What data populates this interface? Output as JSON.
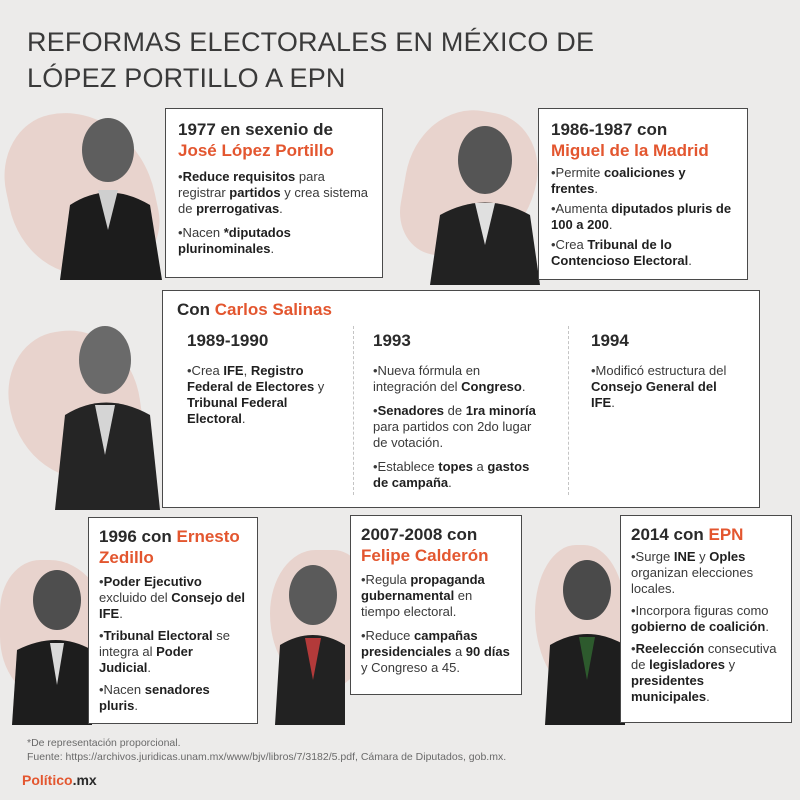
{
  "title": {
    "line1": "REFORMAS ELECTORALES EN MÉXICO DE",
    "line2": "LÓPEZ PORTILLO A EPN"
  },
  "cards": {
    "lopez": {
      "heading_pre": "1977 en sexenio de",
      "heading_name": "José López Portillo",
      "b1": [
        {
          "t": "•"
        },
        {
          "t": "Reduce requisitos",
          "b": true
        },
        {
          "t": " para registrar "
        },
        {
          "t": "partidos",
          "b": true
        },
        {
          "t": " y crea sistema de "
        },
        {
          "t": "prerrogativas",
          "b": true
        },
        {
          "t": "."
        }
      ],
      "b2": [
        {
          "t": "•Nacen "
        },
        {
          "t": "*diputados plurinominales",
          "b": true
        },
        {
          "t": "."
        }
      ]
    },
    "madrid": {
      "heading_pre": "1986-1987 con",
      "heading_name": "Miguel de la Madrid",
      "b1": [
        {
          "t": "•Permite "
        },
        {
          "t": "coaliciones y frentes",
          "b": true
        },
        {
          "t": "."
        }
      ],
      "b2": [
        {
          "t": "•Aumenta "
        },
        {
          "t": "diputados pluris de 100 a 200",
          "b": true
        },
        {
          "t": "."
        }
      ],
      "b3": [
        {
          "t": "•Crea "
        },
        {
          "t": "Tribunal de lo Contencioso Electoral",
          "b": true
        },
        {
          "t": "."
        }
      ]
    },
    "salinas": {
      "heading_pre": "Con",
      "heading_name": "Carlos Salinas",
      "col1": {
        "year": "1989-1990",
        "b1": [
          {
            "t": "•Crea "
          },
          {
            "t": "IFE",
            "b": true
          },
          {
            "t": ", "
          },
          {
            "t": "Registro Federal de Electores",
            "b": true
          },
          {
            "t": " y "
          },
          {
            "t": "Tribunal Federal Electoral",
            "b": true
          },
          {
            "t": "."
          }
        ]
      },
      "col2": {
        "year": "1993",
        "b1": [
          {
            "t": "•Nueva fórmula en integración del "
          },
          {
            "t": "Congreso",
            "b": true
          },
          {
            "t": "."
          }
        ],
        "b2": [
          {
            "t": "•"
          },
          {
            "t": "Senadores",
            "b": true
          },
          {
            "t": " de "
          },
          {
            "t": "1ra minoría",
            "b": true
          },
          {
            "t": " para partidos con 2do lugar de votación."
          }
        ],
        "b3": [
          {
            "t": "•Establece "
          },
          {
            "t": "topes",
            "b": true
          },
          {
            "t": " a "
          },
          {
            "t": "gastos de campaña",
            "b": true
          },
          {
            "t": "."
          }
        ]
      },
      "col3": {
        "year": "1994",
        "b1": [
          {
            "t": "•Modificó estructura del "
          },
          {
            "t": "Consejo General del IFE",
            "b": true
          },
          {
            "t": "."
          }
        ]
      }
    },
    "zedillo": {
      "heading_pre": "1996 con",
      "heading_name": "Ernesto Zedillo",
      "b1": [
        {
          "t": "•"
        },
        {
          "t": "Poder Ejecutivo",
          "b": true
        },
        {
          "t": " excluido del "
        },
        {
          "t": "Consejo del IFE",
          "b": true
        },
        {
          "t": "."
        }
      ],
      "b2": [
        {
          "t": "•"
        },
        {
          "t": "Tribunal Electoral",
          "b": true
        },
        {
          "t": " se integra al "
        },
        {
          "t": "Poder Judicial",
          "b": true
        },
        {
          "t": "."
        }
      ],
      "b3": [
        {
          "t": "•Nacen "
        },
        {
          "t": "senadores pluris",
          "b": true
        },
        {
          "t": "."
        }
      ]
    },
    "calderon": {
      "heading_pre": "2007-2008 con",
      "heading_name": "Felipe Calderón",
      "b1": [
        {
          "t": "•Regula "
        },
        {
          "t": "propaganda gubernamental",
          "b": true
        },
        {
          "t": " en tiempo electoral."
        }
      ],
      "b2": [
        {
          "t": "•Reduce "
        },
        {
          "t": "campañas presidenciales",
          "b": true
        },
        {
          "t": " a "
        },
        {
          "t": "90 días",
          "b": true
        },
        {
          "t": " y Congreso a 45."
        }
      ]
    },
    "epn": {
      "heading_pre": "2014 con",
      "heading_name": "EPN",
      "b1": [
        {
          "t": "•Surge "
        },
        {
          "t": "INE",
          "b": true
        },
        {
          "t": " y "
        },
        {
          "t": "Oples",
          "b": true
        },
        {
          "t": " organizan elecciones locales."
        }
      ],
      "b2": [
        {
          "t": "•Incorpora figuras como "
        },
        {
          "t": "gobierno de coalición",
          "b": true
        },
        {
          "t": "."
        }
      ],
      "b3": [
        {
          "t": "•"
        },
        {
          "t": "Reelección",
          "b": true
        },
        {
          "t": " consecutiva de "
        },
        {
          "t": "legisladores",
          "b": true
        },
        {
          "t": " y "
        },
        {
          "t": "presidentes municipales",
          "b": true
        },
        {
          "t": "."
        }
      ]
    }
  },
  "footnote": "*De representación proporcional.",
  "source": "Fuente: https://archivos.juridicas.unam.mx/www/bjv/libros/7/3182/5.pdf, Cámara de Diputados, gob.mx.",
  "logo": {
    "brand": "Político",
    "suffix": ".mx"
  },
  "colors": {
    "accent": "#e3562f",
    "background": "#ecebea",
    "card": "#ffffff",
    "border": "#4a4a4a"
  }
}
